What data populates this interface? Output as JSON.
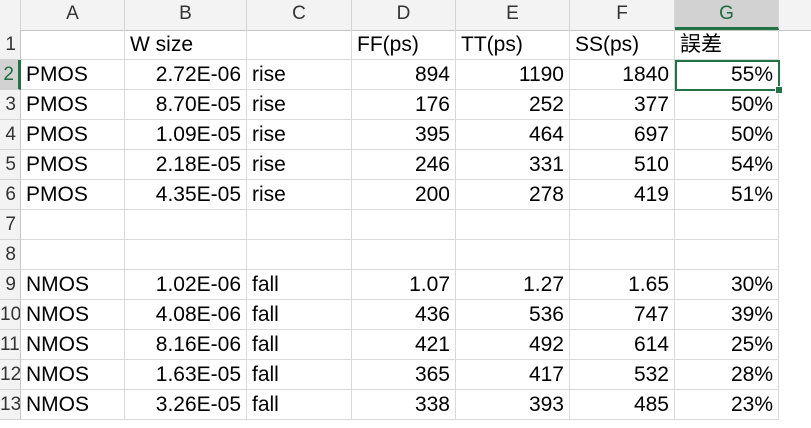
{
  "columns": [
    "A",
    "B",
    "C",
    "D",
    "E",
    "F",
    "G"
  ],
  "selected_column": "G",
  "selected_row": "2",
  "header_row": {
    "row": "1",
    "cells": [
      "",
      "W size",
      "",
      "FF(ps)",
      "TT(ps)",
      "SS(ps)",
      "誤差"
    ]
  },
  "rows": [
    {
      "row": "2",
      "cells": [
        "PMOS",
        "2.72E-06",
        "rise",
        "894",
        "1190",
        "1840",
        "55%"
      ]
    },
    {
      "row": "3",
      "cells": [
        "PMOS",
        "8.70E-05",
        "rise",
        "176",
        "252",
        "377",
        "50%"
      ]
    },
    {
      "row": "4",
      "cells": [
        "PMOS",
        "1.09E-05",
        "rise",
        "395",
        "464",
        "697",
        "50%"
      ]
    },
    {
      "row": "5",
      "cells": [
        "PMOS",
        "2.18E-05",
        "rise",
        "246",
        "331",
        "510",
        "54%"
      ]
    },
    {
      "row": "6",
      "cells": [
        "PMOS",
        "4.35E-05",
        "rise",
        "200",
        "278",
        "419",
        "51%"
      ]
    },
    {
      "row": "7",
      "cells": [
        "",
        "",
        "",
        "",
        "",
        "",
        ""
      ]
    },
    {
      "row": "8",
      "cells": [
        "",
        "",
        "",
        "",
        "",
        "",
        ""
      ]
    },
    {
      "row": "9",
      "cells": [
        "NMOS",
        "1.02E-06",
        "fall",
        "1.07",
        "1.27",
        "1.65",
        "30%"
      ]
    },
    {
      "row": "10",
      "cells": [
        "NMOS",
        "4.08E-06",
        "fall",
        "436",
        "536",
        "747",
        "39%"
      ]
    },
    {
      "row": "11",
      "cells": [
        "NMOS",
        "8.16E-06",
        "fall",
        "421",
        "492",
        "614",
        "25%"
      ]
    },
    {
      "row": "12",
      "cells": [
        "NMOS",
        "1.63E-05",
        "fall",
        "365",
        "417",
        "532",
        "28%"
      ]
    },
    {
      "row": "13",
      "cells": [
        "NMOS",
        "3.26E-05",
        "fall",
        "338",
        "393",
        "485",
        "23%"
      ]
    }
  ],
  "colors": {
    "selection": "#217346",
    "header_bg": "#f3f3f3",
    "gridline": "#d9d9d9"
  }
}
